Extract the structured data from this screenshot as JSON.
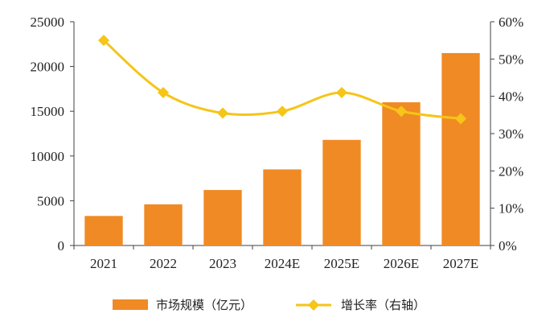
{
  "chart_data": {
    "type": "bar",
    "title": "",
    "categories": [
      "2021",
      "2022",
      "2023",
      "2024E",
      "2025E",
      "2026E",
      "2027E"
    ],
    "series": [
      {
        "name": "市场规模（亿元）",
        "type": "bar",
        "axis": "left",
        "values": [
          3300,
          4600,
          6200,
          8500,
          11800,
          16000,
          21500
        ],
        "color": "#F08A24"
      },
      {
        "name": "增长率（右轴）",
        "type": "line",
        "axis": "right",
        "values": [
          55.0,
          41.0,
          35.5,
          36.0,
          41.0,
          36.0,
          34.0
        ],
        "color": "#F5C518"
      }
    ],
    "y_left": {
      "min": 0,
      "max": 25000,
      "ticks": [
        0,
        5000,
        10000,
        15000,
        20000,
        25000
      ],
      "tick_labels": [
        "0",
        "5000",
        "10000",
        "15000",
        "20000",
        "25000"
      ]
    },
    "y_right": {
      "min": 0,
      "max": 60,
      "ticks": [
        0,
        10,
        20,
        30,
        40,
        50,
        60
      ],
      "tick_labels": [
        "0%",
        "10%",
        "20%",
        "30%",
        "40%",
        "50%",
        "60%"
      ]
    },
    "legend": {
      "position": "bottom"
    },
    "grid": false
  }
}
